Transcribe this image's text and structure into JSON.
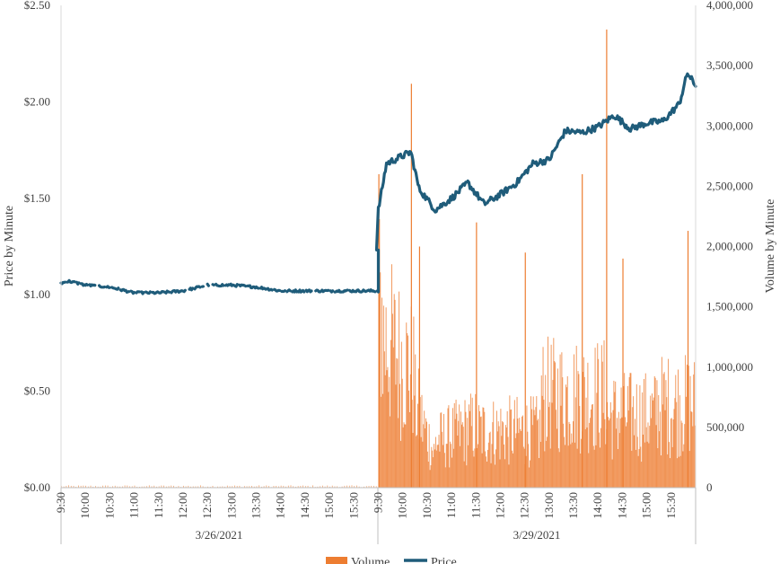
{
  "chart_data": {
    "type": "bar+line",
    "title": "",
    "left_axis": {
      "label": "Price by Minute",
      "ticks": [
        "$0.00",
        "$0.50",
        "$1.00",
        "$1.50",
        "$2.00",
        "$2.50"
      ],
      "range": [
        0,
        2.5
      ]
    },
    "right_axis": {
      "label": "Volume by Minute",
      "ticks": [
        "0",
        "500,000",
        "1,000,000",
        "1,500,000",
        "2,000,000",
        "2,500,000",
        "3,000,000",
        "3,500,000",
        "4,000,000"
      ],
      "range": [
        0,
        4000000
      ]
    },
    "x_axis": {
      "day1": {
        "date": "3/26/2021",
        "time_ticks": [
          "9:30",
          "10:00",
          "10:30",
          "11:00",
          "11:30",
          "12:00",
          "12:30",
          "13:00",
          "13:30",
          "14:00",
          "14:30",
          "15:00",
          "15:30"
        ]
      },
      "day2": {
        "date": "3/29/2021",
        "time_ticks": [
          "9:30",
          "10:00",
          "10:30",
          "11:00",
          "11:30",
          "12:00",
          "12:30",
          "13:00",
          "13:30",
          "14:00",
          "14:30",
          "15:00",
          "15:30"
        ]
      }
    },
    "legend": {
      "position": "bottom",
      "items": [
        {
          "name": "Volume",
          "color": "#ED7D31"
        },
        {
          "name": "Price",
          "color": "#1F5C7A"
        }
      ]
    },
    "series": [
      {
        "name": "Price",
        "axis": "left",
        "color": "#1F5C7A",
        "points": [
          {
            "t": "3/26/2021 9:30",
            "v": 1.06
          },
          {
            "t": "3/26/2021 9:40",
            "v": 1.07
          },
          {
            "t": "3/26/2021 10:00",
            "v": 1.05
          },
          {
            "t": "3/26/2021 10:30",
            "v": 1.04
          },
          {
            "t": "3/26/2021 11:00",
            "v": 1.01
          },
          {
            "t": "3/26/2021 11:30",
            "v": 1.01
          },
          {
            "t": "3/26/2021 12:00",
            "v": 1.02
          },
          {
            "t": "3/26/2021 12:30",
            "v": 1.05
          },
          {
            "t": "3/26/2021 13:00",
            "v": 1.05
          },
          {
            "t": "3/26/2021 13:30",
            "v": 1.04
          },
          {
            "t": "3/26/2021 14:00",
            "v": 1.02
          },
          {
            "t": "3/26/2021 14:30",
            "v": 1.02
          },
          {
            "t": "3/26/2021 15:00",
            "v": 1.02
          },
          {
            "t": "3/26/2021 15:30",
            "v": 1.02
          },
          {
            "t": "3/26/2021 16:00",
            "v": 1.02
          },
          {
            "t": "3/29/2021 9:30",
            "v": 1.44
          },
          {
            "t": "3/29/2021 9:40",
            "v": 1.68
          },
          {
            "t": "3/29/2021 10:00",
            "v": 1.72
          },
          {
            "t": "3/29/2021 10:10",
            "v": 1.74
          },
          {
            "t": "3/29/2021 10:20",
            "v": 1.55
          },
          {
            "t": "3/29/2021 10:40",
            "v": 1.44
          },
          {
            "t": "3/29/2021 11:00",
            "v": 1.5
          },
          {
            "t": "3/29/2021 11:20",
            "v": 1.58
          },
          {
            "t": "3/29/2021 11:40",
            "v": 1.47
          },
          {
            "t": "3/29/2021 12:00",
            "v": 1.52
          },
          {
            "t": "3/29/2021 12:20",
            "v": 1.58
          },
          {
            "t": "3/29/2021 12:40",
            "v": 1.68
          },
          {
            "t": "3/29/2021 13:00",
            "v": 1.7
          },
          {
            "t": "3/29/2021 13:20",
            "v": 1.85
          },
          {
            "t": "3/29/2021 13:40",
            "v": 1.84
          },
          {
            "t": "3/29/2021 14:00",
            "v": 1.87
          },
          {
            "t": "3/29/2021 14:20",
            "v": 1.93
          },
          {
            "t": "3/29/2021 14:40",
            "v": 1.86
          },
          {
            "t": "3/29/2021 15:00",
            "v": 1.89
          },
          {
            "t": "3/29/2021 15:20",
            "v": 1.9
          },
          {
            "t": "3/29/2021 15:40",
            "v": 1.99
          },
          {
            "t": "3/29/2021 15:50",
            "v": 2.15
          },
          {
            "t": "3/29/2021 16:00",
            "v": 2.08
          }
        ]
      },
      {
        "name": "Volume",
        "axis": "right",
        "color": "#ED7D31",
        "note_values": "minute volume spikes read from the right axis",
        "peaks": [
          {
            "t": "3/29/2021 9:30",
            "v": 2600000
          },
          {
            "t": "3/29/2021 10:10",
            "v": 3350000
          },
          {
            "t": "3/29/2021 10:20",
            "v": 2000000
          },
          {
            "t": "3/29/2021 11:30",
            "v": 2200000
          },
          {
            "t": "3/29/2021 12:30",
            "v": 1950000
          },
          {
            "t": "3/29/2021 13:40",
            "v": 2600000
          },
          {
            "t": "3/29/2021 14:10",
            "v": 3800000
          },
          {
            "t": "3/29/2021 14:30",
            "v": 1900000
          },
          {
            "t": "3/29/2021 15:50",
            "v": 2130000
          }
        ]
      }
    ]
  }
}
